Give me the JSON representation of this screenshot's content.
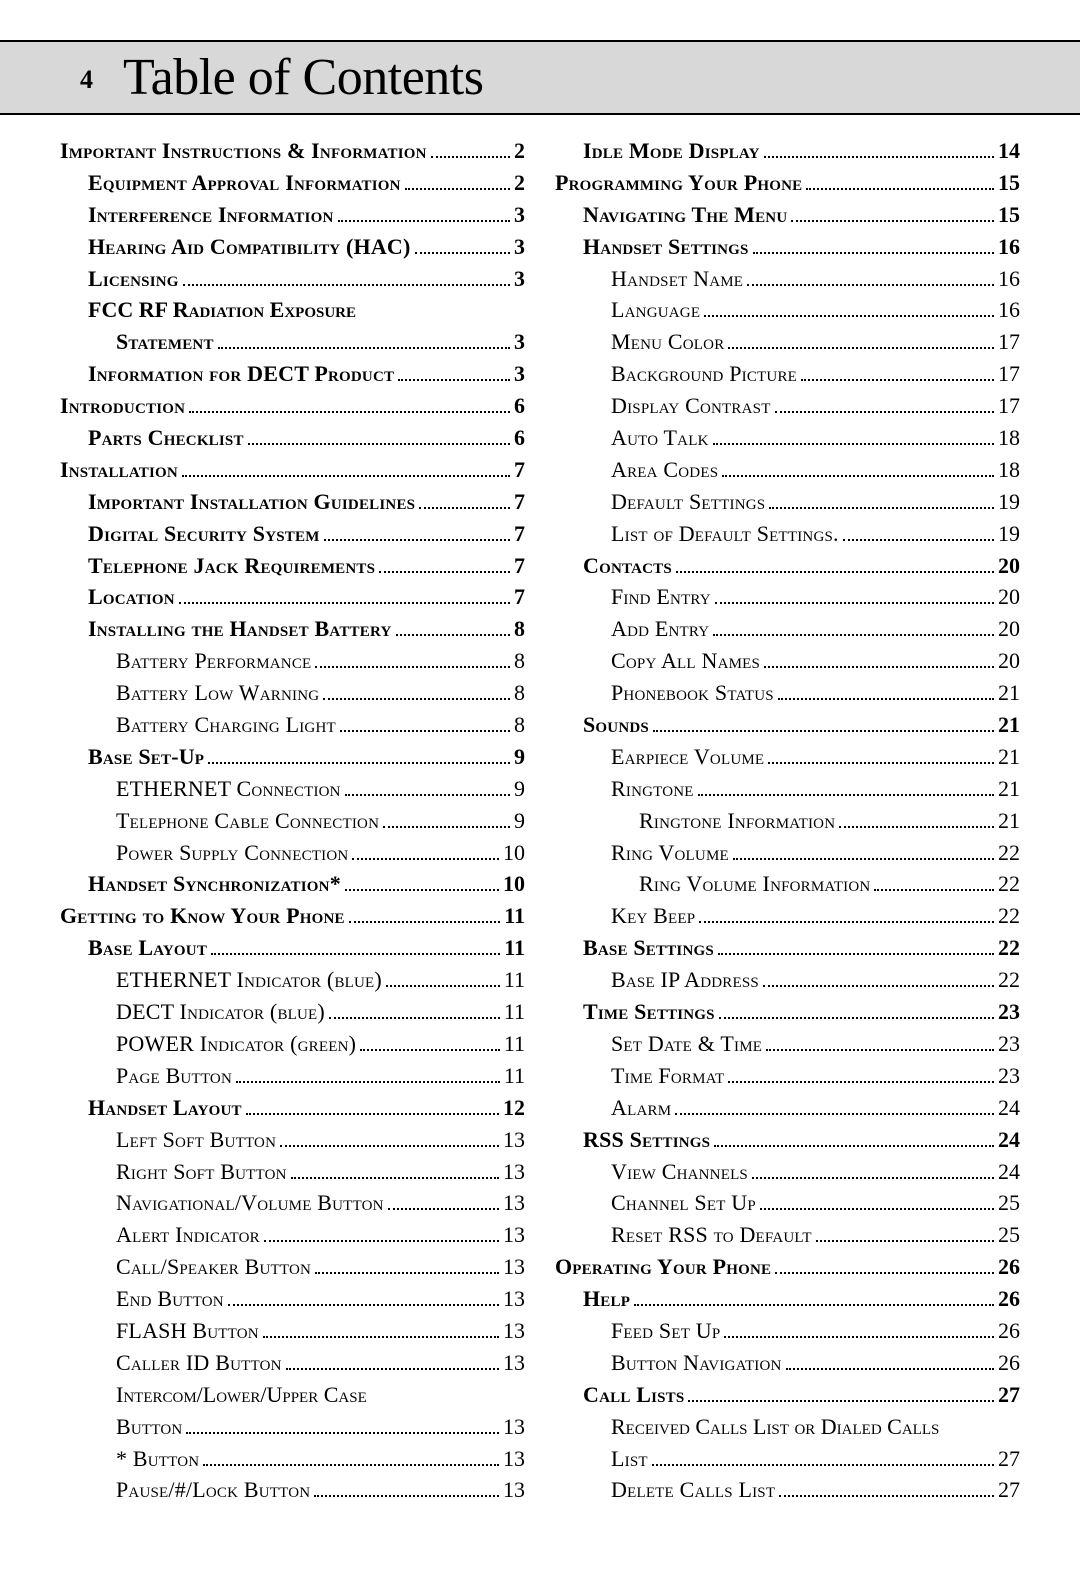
{
  "header": {
    "page_number": "4",
    "title": "Table of Contents"
  },
  "columns": [
    [
      {
        "label": "Important Instructions & Information",
        "page": "2",
        "level": 0,
        "bold": true
      },
      {
        "label": "Equipment Approval Information",
        "page": "2",
        "level": 1,
        "bold": true
      },
      {
        "label": "Interference Information",
        "page": "3",
        "level": 1,
        "bold": true
      },
      {
        "label": "Hearing Aid Compatibility (HAC)",
        "page": "3",
        "level": 1,
        "bold": true
      },
      {
        "label": "Licensing",
        "page": "3",
        "level": 1,
        "bold": true
      },
      {
        "wrap": "FCC RF Radiation Exposure",
        "level": 1,
        "bold": true
      },
      {
        "label": "Statement",
        "page": "3",
        "level": 2,
        "bold": true
      },
      {
        "label": "Information for DECT Product",
        "page": "3",
        "level": 1,
        "bold": true
      },
      {
        "label": "Introduction",
        "page": "6",
        "level": 0,
        "bold": true
      },
      {
        "label": "Parts Checklist",
        "page": "6",
        "level": 1,
        "bold": true
      },
      {
        "label": "Installation",
        "page": "7",
        "level": 0,
        "bold": true
      },
      {
        "label": "Important Installation Guidelines",
        "page": "7",
        "level": 1,
        "bold": true
      },
      {
        "label": "Digital Security System",
        "page": "7",
        "level": 1,
        "bold": true
      },
      {
        "label": "Telephone Jack Requirements",
        "page": "7",
        "level": 1,
        "bold": true
      },
      {
        "label": "Location",
        "page": "7",
        "level": 1,
        "bold": true
      },
      {
        "label": "Installing the Handset Battery",
        "page": "8",
        "level": 1,
        "bold": true
      },
      {
        "label": "Battery Performance",
        "page": "8",
        "level": 2,
        "bold": false
      },
      {
        "label": "Battery Low Warning",
        "page": "8",
        "level": 2,
        "bold": false
      },
      {
        "label": "Battery Charging Light",
        "page": "8",
        "level": 2,
        "bold": false
      },
      {
        "label": "Base Set-Up",
        "page": "9",
        "level": 1,
        "bold": true
      },
      {
        "label": "ETHERNET Connection",
        "page": "9",
        "level": 2,
        "bold": false
      },
      {
        "label": "Telephone Cable Connection",
        "page": "9",
        "level": 2,
        "bold": false
      },
      {
        "label": "Power Supply Connection",
        "page": "10",
        "level": 2,
        "bold": false
      },
      {
        "label": "Handset Synchronization*",
        "page": "10",
        "level": 1,
        "bold": true
      },
      {
        "label": "Getting to Know Your Phone",
        "page": "11",
        "level": 0,
        "bold": true
      },
      {
        "label": "Base Layout",
        "page": "11",
        "level": 1,
        "bold": true
      },
      {
        "label": "ETHERNET Indicator (blue)",
        "page": "11",
        "level": 2,
        "bold": false
      },
      {
        "label": "DECT Indicator (blue)",
        "page": "11",
        "level": 2,
        "bold": false
      },
      {
        "label": "POWER Indicator (green)",
        "page": "11",
        "level": 2,
        "bold": false
      },
      {
        "label": "Page Button",
        "page": "11",
        "level": 2,
        "bold": false
      },
      {
        "label": "Handset Layout",
        "page": "12",
        "level": 1,
        "bold": true
      },
      {
        "label": "Left Soft Button",
        "page": "13",
        "level": 2,
        "bold": false
      },
      {
        "label": "Right Soft Button",
        "page": "13",
        "level": 2,
        "bold": false
      },
      {
        "label": "Navigational/Volume Button",
        "page": "13",
        "level": 2,
        "bold": false
      },
      {
        "label": "Alert Indicator",
        "page": "13",
        "level": 2,
        "bold": false
      },
      {
        "label": "Call/Speaker Button",
        "page": "13",
        "level": 2,
        "bold": false
      },
      {
        "label": "End Button",
        "page": "13",
        "level": 2,
        "bold": false
      },
      {
        "label": "FLASH Button",
        "page": "13",
        "level": 2,
        "bold": false
      },
      {
        "label": "Caller ID Button",
        "page": "13",
        "level": 2,
        "bold": false
      },
      {
        "wrap": "Intercom/Lower/Upper Case",
        "level": 2,
        "bold": false
      },
      {
        "label": "Button",
        "page": "13",
        "level": 2,
        "bold": false
      },
      {
        "label": "* Button",
        "page": "13",
        "level": 2,
        "bold": false
      },
      {
        "label": "Pause/#/Lock Button",
        "page": "13",
        "level": 2,
        "bold": false
      }
    ],
    [
      {
        "label": "Idle Mode Display",
        "page": "14",
        "level": 1,
        "bold": true
      },
      {
        "label": "Programming Your Phone",
        "page": "15",
        "level": 0,
        "bold": true
      },
      {
        "label": "Navigating The Menu",
        "page": "15",
        "level": 1,
        "bold": true
      },
      {
        "label": "Handset Settings",
        "page": "16",
        "level": 1,
        "bold": true
      },
      {
        "label": "Handset Name",
        "page": "16",
        "level": 2,
        "bold": false
      },
      {
        "label": "Language",
        "page": "16",
        "level": 2,
        "bold": false
      },
      {
        "label": "Menu Color",
        "page": "17",
        "level": 2,
        "bold": false
      },
      {
        "label": "Background Picture",
        "page": "17",
        "level": 2,
        "bold": false
      },
      {
        "label": "Display Contrast",
        "page": "17",
        "level": 2,
        "bold": false
      },
      {
        "label": "Auto Talk",
        "page": "18",
        "level": 2,
        "bold": false
      },
      {
        "label": "Area Codes",
        "page": "18",
        "level": 2,
        "bold": false
      },
      {
        "label": "Default Settings",
        "page": "19",
        "level": 2,
        "bold": false
      },
      {
        "label": "List of Default Settings.",
        "page": "19",
        "level": 2,
        "bold": false
      },
      {
        "label": "Contacts",
        "page": "20",
        "level": 1,
        "bold": true
      },
      {
        "label": "Find Entry",
        "page": "20",
        "level": 2,
        "bold": false
      },
      {
        "label": "Add Entry",
        "page": "20",
        "level": 2,
        "bold": false
      },
      {
        "label": "Copy All Names",
        "page": "20",
        "level": 2,
        "bold": false
      },
      {
        "label": "Phonebook Status",
        "page": "21",
        "level": 2,
        "bold": false
      },
      {
        "label": "Sounds",
        "page": "21",
        "level": 1,
        "bold": true
      },
      {
        "label": "Earpiece Volume",
        "page": "21",
        "level": 2,
        "bold": false
      },
      {
        "label": "Ringtone",
        "page": "21",
        "level": 2,
        "bold": false
      },
      {
        "label": "Ringtone Information",
        "page": "21",
        "level": 3,
        "bold": false
      },
      {
        "label": "Ring Volume",
        "page": "22",
        "level": 2,
        "bold": false
      },
      {
        "label": "Ring Volume Information",
        "page": "22",
        "level": 3,
        "bold": false
      },
      {
        "label": "Key Beep",
        "page": "22",
        "level": 2,
        "bold": false
      },
      {
        "label": "Base Settings",
        "page": "22",
        "level": 1,
        "bold": true
      },
      {
        "label": "Base IP Address",
        "page": "22",
        "level": 2,
        "bold": false
      },
      {
        "label": "Time Settings",
        "page": "23",
        "level": 1,
        "bold": true
      },
      {
        "label": "Set Date & Time",
        "page": "23",
        "level": 2,
        "bold": false
      },
      {
        "label": "Time Format",
        "page": "23",
        "level": 2,
        "bold": false
      },
      {
        "label": "Alarm",
        "page": "24",
        "level": 2,
        "bold": false
      },
      {
        "label": "RSS Settings",
        "page": "24",
        "level": 1,
        "bold": true
      },
      {
        "label": "View Channels",
        "page": "24",
        "level": 2,
        "bold": false
      },
      {
        "label": "Channel Set Up",
        "page": "25",
        "level": 2,
        "bold": false
      },
      {
        "label": "Reset RSS to Default",
        "page": "25",
        "level": 2,
        "bold": false
      },
      {
        "label": "Operating Your Phone",
        "page": "26",
        "level": 0,
        "bold": true
      },
      {
        "label": "Help",
        "page": "26",
        "level": 1,
        "bold": true
      },
      {
        "label": "Feed Set Up",
        "page": "26",
        "level": 2,
        "bold": false
      },
      {
        "label": "Button Navigation",
        "page": "26",
        "level": 2,
        "bold": false
      },
      {
        "label": "Call Lists",
        "page": "27",
        "level": 1,
        "bold": true
      },
      {
        "wrap": "Received Calls List or Dialed Calls",
        "level": 2,
        "bold": false
      },
      {
        "label": "List",
        "page": "27",
        "level": 2,
        "bold": false
      },
      {
        "label": "Delete Calls List",
        "page": "27",
        "level": 2,
        "bold": false
      }
    ]
  ]
}
